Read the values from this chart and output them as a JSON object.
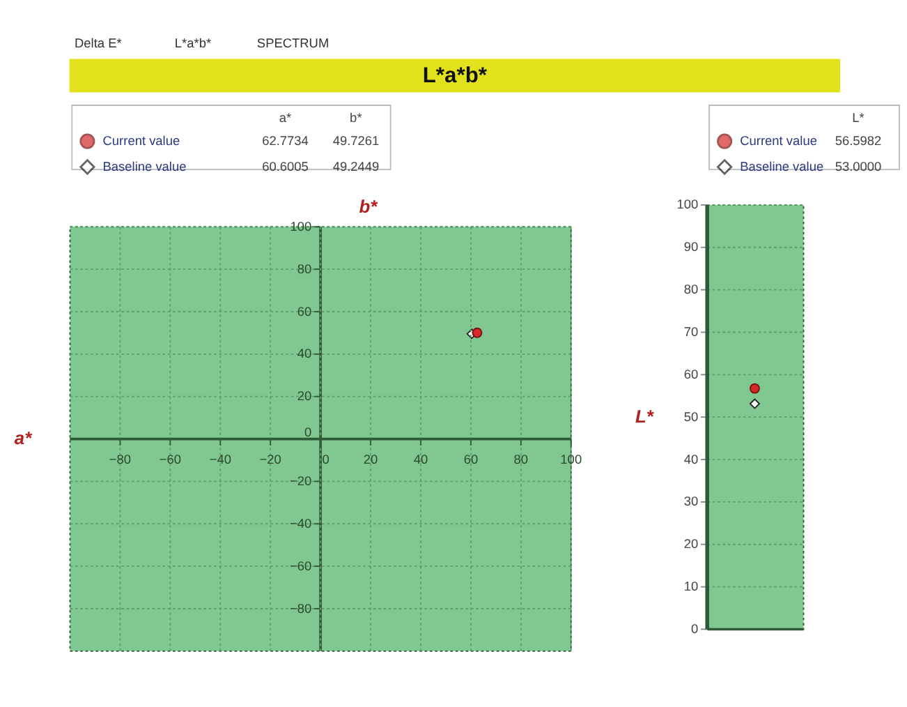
{
  "chart_data": [
    {
      "type": "scatter",
      "title": "L*a*b*",
      "xlabel": "a*",
      "ylabel": "b*",
      "xlim": [
        -100,
        100
      ],
      "ylim": [
        -100,
        100
      ],
      "xticks": [
        -80,
        -60,
        -40,
        -20,
        0,
        20,
        40,
        60,
        80,
        100
      ],
      "yticks": [
        -80,
        -60,
        -40,
        -20,
        0,
        20,
        40,
        60,
        80,
        100
      ],
      "grid": true,
      "legend": "top left",
      "annotations": [
        "Delta E*",
        "L*a*b*",
        "SPECTRUM",
        "a*",
        "b*",
        "62.7734",
        "49.7261",
        "60.6005",
        "49.2449"
      ],
      "series": [
        {
          "name": "Current value",
          "color": "#d42a2a",
          "marker": "circle",
          "x": [
            62.7734
          ],
          "values": [
            49.7261
          ]
        },
        {
          "name": "Baseline value",
          "color": "#ffffff",
          "marker": "diamond",
          "x": [
            60.6005
          ],
          "values": [
            49.2449
          ]
        }
      ]
    },
    {
      "type": "scatter",
      "ylabel": "L*",
      "categories": [
        null
      ],
      "ylim": [
        0,
        100
      ],
      "yticks": [
        0,
        10,
        20,
        30,
        40,
        50,
        60,
        70,
        80,
        90,
        100
      ],
      "grid": "y",
      "legend": "top",
      "tick_labels": "y",
      "annotations": [
        "L*",
        "56.5982",
        "53.0000"
      ],
      "series": [
        {
          "name": "Current value",
          "color": "#d42a2a",
          "marker": "circle",
          "values": [
            56.5982
          ]
        },
        {
          "name": "Baseline value",
          "color": "#ffffff",
          "marker": "diamond",
          "values": [
            53.0
          ]
        }
      ]
    }
  ]
}
